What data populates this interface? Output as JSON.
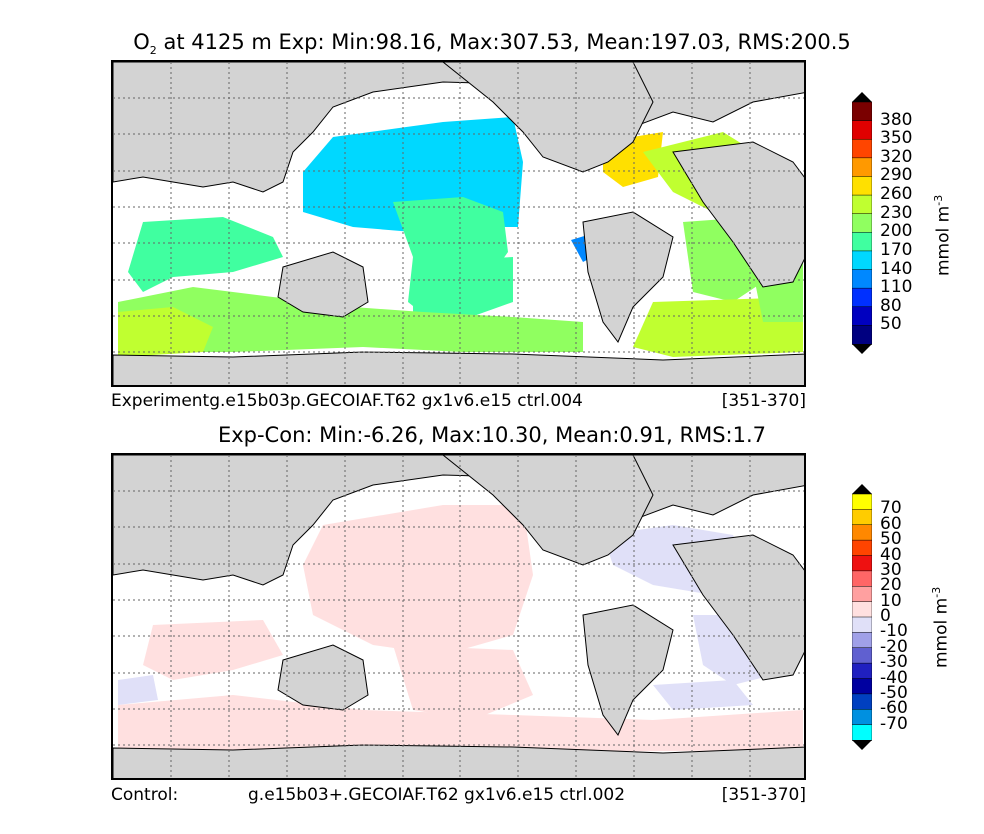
{
  "top_panel": {
    "title_prefix": "O",
    "title_sub": "2",
    "title_rest": " at 4125 m Exp: Min:98.16, Max:307.53, Mean:197.03, RMS:200.5",
    "caption_left": "Experimentg.e15b03p.GECOIAF.T62 gx1v6.e15 ctrl.004",
    "caption_right": "[351-370]",
    "colorbar": {
      "ticks": [
        "380",
        "350",
        "320",
        "290",
        "260",
        "230",
        "200",
        "170",
        "140",
        "110",
        "80",
        "50"
      ],
      "colors": [
        "#7a0000",
        "#e00000",
        "#ff4500",
        "#ff9900",
        "#ffe000",
        "#c0ff30",
        "#90ff60",
        "#40ffa0",
        "#00d8ff",
        "#0088ff",
        "#0030ff",
        "#0000c0",
        "#000080"
      ],
      "units": "mmol m",
      "units_sup": "-3"
    }
  },
  "bottom_panel": {
    "title": "Exp-Con: Min:-6.26, Max:10.30, Mean:0.91, RMS:1.7",
    "caption_left": "Control:",
    "caption_mid": "g.e15b03+.GECOIAF.T62 gx1v6.e15 ctrl.002",
    "caption_right": "[351-370]",
    "colorbar": {
      "ticks": [
        "70",
        "60",
        "50",
        "40",
        "30",
        "20",
        "10",
        "0",
        "-10",
        "-20",
        "-30",
        "-40",
        "-50",
        "-60",
        "-70"
      ],
      "colors": [
        "#ffff00",
        "#ffcc00",
        "#ff8800",
        "#ff4400",
        "#ee1111",
        "#ff6666",
        "#ffa0a0",
        "#ffe0e0",
        "#e0e0f8",
        "#a0a0e8",
        "#6060d0",
        "#2020c0",
        "#0000a0",
        "#0040c0",
        "#0090e0",
        "#00ffff"
      ],
      "units": "mmol m",
      "units_sup": "-3"
    }
  }
}
